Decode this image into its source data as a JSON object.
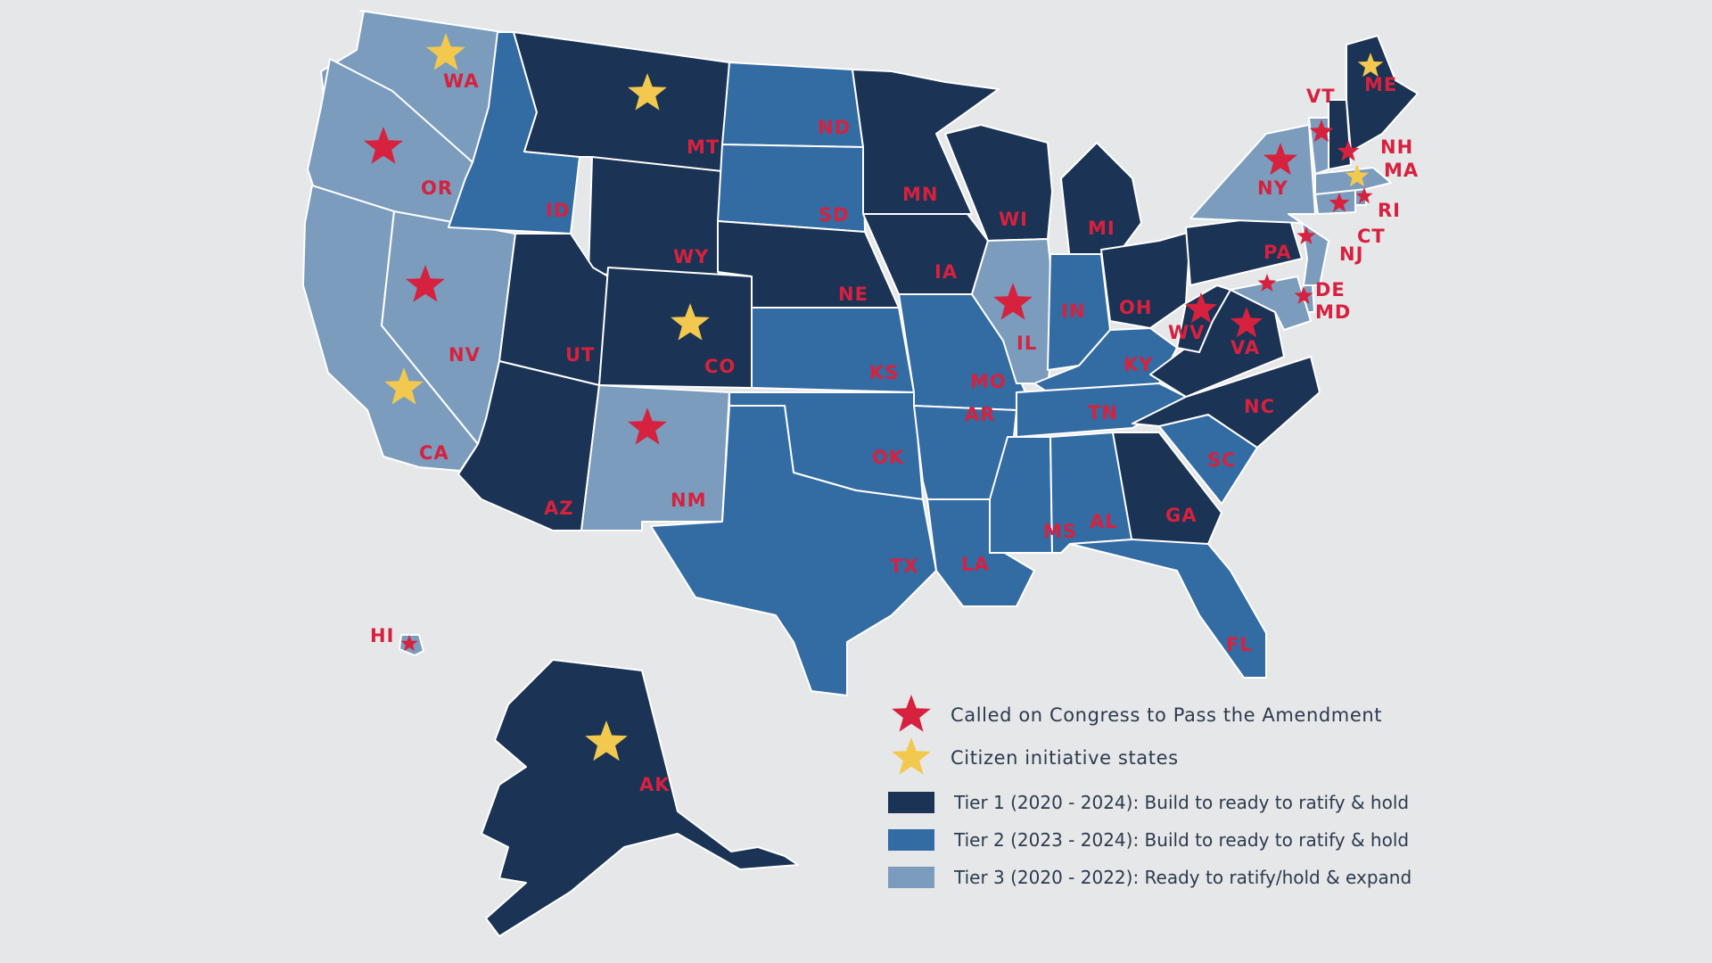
{
  "colors": {
    "tier1": "#1b3354",
    "tier2": "#336ba3",
    "tier3": "#7b9cbc",
    "star_red": "#d6213f",
    "star_yellow": "#f2c94e",
    "label": "#d6213f"
  },
  "legend": {
    "called_on_congress": "Called on Congress to Pass the Amendment",
    "citizen_initiative": "Citizen initiative states",
    "tier1": "Tier 1 (2020 - 2024): Build to ready to ratify & hold",
    "tier2": "Tier 2 (2023 - 2024): Build to ready to ratify & hold",
    "tier3": "Tier 3 (2020 - 2022): Ready to ratify/hold & expand"
  },
  "states": {
    "WA": {
      "label": "WA",
      "tier": 3,
      "star": "yellow"
    },
    "OR": {
      "label": "OR",
      "tier": 3,
      "star": "red"
    },
    "CA": {
      "label": "CA",
      "tier": 3,
      "star": "yellow"
    },
    "NV": {
      "label": "NV",
      "tier": 3,
      "star": "red"
    },
    "ID": {
      "label": "ID",
      "tier": 2,
      "star": null
    },
    "MT": {
      "label": "MT",
      "tier": 1,
      "star": "yellow"
    },
    "WY": {
      "label": "WY",
      "tier": 1,
      "star": null
    },
    "UT": {
      "label": "UT",
      "tier": 1,
      "star": null
    },
    "AZ": {
      "label": "AZ",
      "tier": 1,
      "star": null
    },
    "CO": {
      "label": "CO",
      "tier": 1,
      "star": "yellow"
    },
    "NM": {
      "label": "NM",
      "tier": 3,
      "star": "red"
    },
    "ND": {
      "label": "ND",
      "tier": 2,
      "star": null
    },
    "SD": {
      "label": "SD",
      "tier": 2,
      "star": null
    },
    "NE": {
      "label": "NE",
      "tier": 1,
      "star": null
    },
    "KS": {
      "label": "KS",
      "tier": 2,
      "star": null
    },
    "OK": {
      "label": "OK",
      "tier": 2,
      "star": null
    },
    "TX": {
      "label": "TX",
      "tier": 2,
      "star": null
    },
    "MN": {
      "label": "MN",
      "tier": 1,
      "star": null
    },
    "IA": {
      "label": "IA",
      "tier": 1,
      "star": null
    },
    "MO": {
      "label": "MO",
      "tier": 2,
      "star": null
    },
    "AR": {
      "label": "AR",
      "tier": 2,
      "star": null
    },
    "LA": {
      "label": "LA",
      "tier": 2,
      "star": null
    },
    "WI": {
      "label": "WI",
      "tier": 1,
      "star": null
    },
    "IL": {
      "label": "IL",
      "tier": 3,
      "star": "red"
    },
    "MI": {
      "label": "MI",
      "tier": 1,
      "star": null
    },
    "IN": {
      "label": "IN",
      "tier": 2,
      "star": null
    },
    "OH": {
      "label": "OH",
      "tier": 1,
      "star": null
    },
    "KY": {
      "label": "KY",
      "tier": 2,
      "star": null
    },
    "TN": {
      "label": "TN",
      "tier": 2,
      "star": null
    },
    "MS": {
      "label": "MS",
      "tier": 2,
      "star": null
    },
    "AL": {
      "label": "AL",
      "tier": 2,
      "star": null
    },
    "GA": {
      "label": "GA",
      "tier": 1,
      "star": null
    },
    "FL": {
      "label": "FL",
      "tier": 2,
      "star": null
    },
    "SC": {
      "label": "SC",
      "tier": 2,
      "star": null
    },
    "NC": {
      "label": "NC",
      "tier": 1,
      "star": null
    },
    "VA": {
      "label": "VA",
      "tier": 1,
      "star": "red"
    },
    "WV": {
      "label": "WV",
      "tier": 1,
      "star": "red"
    },
    "PA": {
      "label": "PA",
      "tier": 1,
      "star": null
    },
    "NY": {
      "label": "NY",
      "tier": 3,
      "star": "red"
    },
    "NJ": {
      "label": "NJ",
      "tier": 3,
      "star": "red"
    },
    "DE": {
      "label": "DE",
      "tier": 3,
      "star": "red"
    },
    "MD": {
      "label": "MD",
      "tier": 3,
      "star": "red"
    },
    "CT": {
      "label": "CT",
      "tier": 3,
      "star": "red"
    },
    "RI": {
      "label": "RI",
      "tier": 3,
      "star": "red"
    },
    "MA": {
      "label": "MA",
      "tier": 3,
      "star": "yellow"
    },
    "VT": {
      "label": "VT",
      "tier": 3,
      "star": "red"
    },
    "NH": {
      "label": "NH",
      "tier": 1,
      "star": "red"
    },
    "ME": {
      "label": "ME",
      "tier": 1,
      "star": "yellow"
    },
    "AK": {
      "label": "AK",
      "tier": 1,
      "star": "yellow"
    },
    "HI": {
      "label": "HI",
      "tier": 3,
      "star": "red"
    }
  }
}
